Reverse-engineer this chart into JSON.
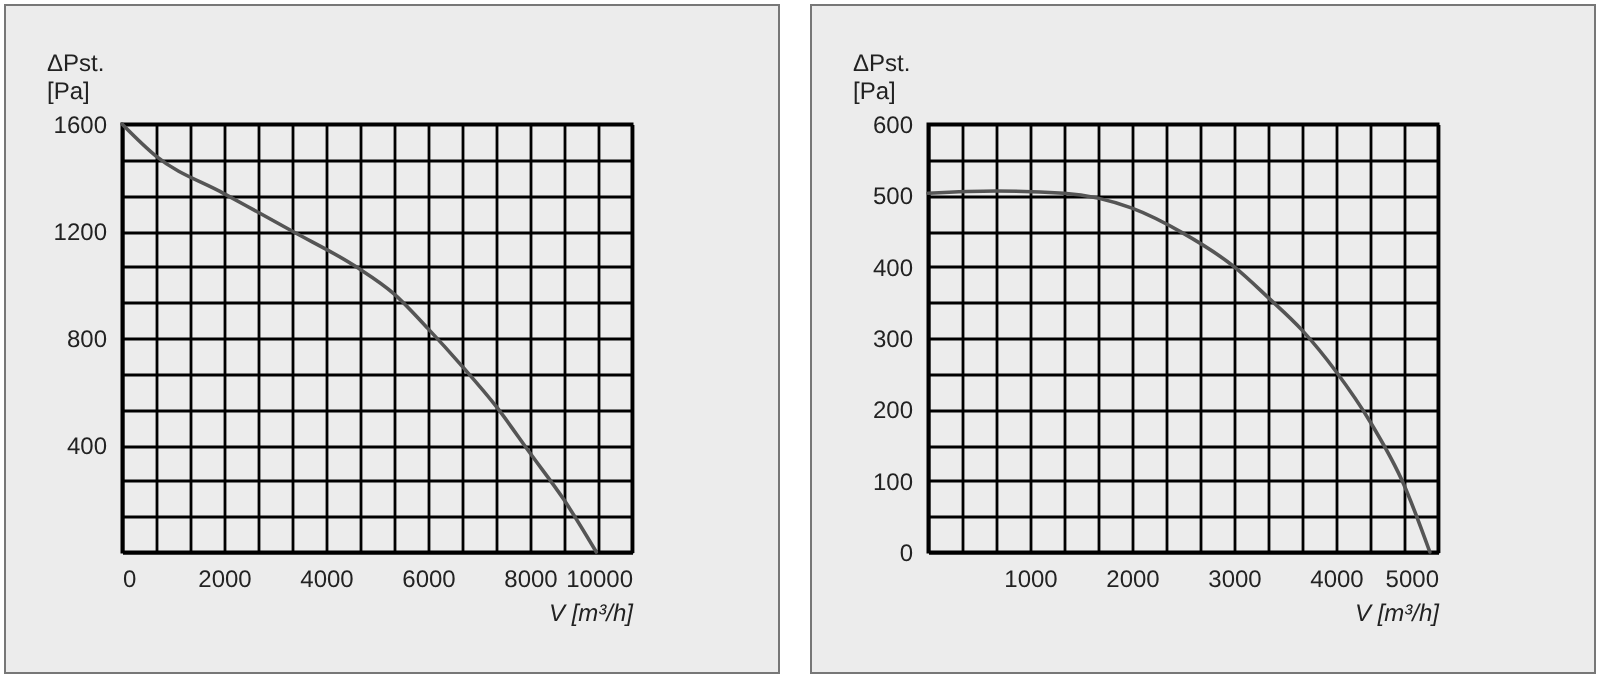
{
  "chart_data": [
    {
      "type": "line",
      "xlabel": "V [m³/h]",
      "ylabel": "ΔPst.\n[Pa]",
      "grid": true,
      "marker": "none",
      "line_style": "solid",
      "xlim": [
        0,
        10000
      ],
      "ylim": [
        0,
        1600
      ],
      "xticks": [
        0,
        {
          "value": 666.7,
          "label": null
        },
        {
          "value": 1333.3,
          "label": null
        },
        2000,
        {
          "value": 2666.7,
          "label": null
        },
        {
          "value": 3333.3,
          "label": null
        },
        4000,
        {
          "value": 4666.7,
          "label": null
        },
        {
          "value": 5333.3,
          "label": null
        },
        6000,
        {
          "value": 6666.7,
          "label": null
        },
        {
          "value": 7333.3,
          "label": null
        },
        8000,
        {
          "value": 8666.7,
          "label": null
        },
        {
          "value": 9333.3,
          "label": null
        },
        10000
      ],
      "yticks": [
        {
          "value": 0,
          "label": null
        },
        {
          "value": 133.3,
          "label": null
        },
        {
          "value": 266.7,
          "label": null
        },
        400,
        {
          "value": 533.3,
          "label": null
        },
        {
          "value": 666.7,
          "label": null
        },
        800,
        {
          "value": 933.3,
          "label": null
        },
        {
          "value": 1066.7,
          "label": null
        },
        1200,
        {
          "value": 1333.3,
          "label": null
        },
        {
          "value": 1466.7,
          "label": null
        },
        1600
      ],
      "x": [
        0,
        667,
        2000,
        3333,
        4600,
        5333,
        6000,
        6667,
        7333,
        8000,
        8667,
        9300
      ],
      "series": [
        {
          "color": "#555555",
          "values": [
            1600,
            1480,
            1340,
            1200,
            1065,
            965,
            835,
            695,
            545,
            370,
            195,
            0
          ]
        }
      ]
    },
    {
      "type": "line",
      "xlabel": "V [m³/h]",
      "ylabel": "ΔPst.\n[Pa]",
      "grid": true,
      "marker": "none",
      "line_style": "solid",
      "xlim": [
        0,
        5000
      ],
      "ylim": [
        0,
        600
      ],
      "xticks": [
        {
          "value": 0,
          "label": null
        },
        {
          "value": 333.3,
          "label": null
        },
        {
          "value": 666.7,
          "label": null
        },
        1000,
        {
          "value": 1333.3,
          "label": null
        },
        {
          "value": 1666.7,
          "label": null
        },
        2000,
        {
          "value": 2333.3,
          "label": null
        },
        {
          "value": 2666.7,
          "label": null
        },
        3000,
        {
          "value": 3333.3,
          "label": null
        },
        {
          "value": 3666.7,
          "label": null
        },
        4000,
        {
          "value": 4333.3,
          "label": null
        },
        {
          "value": 4666.7,
          "label": null
        },
        5000
      ],
      "yticks": [
        0,
        {
          "value": 50,
          "label": null
        },
        100,
        {
          "value": 150,
          "label": null
        },
        200,
        {
          "value": 250,
          "label": null
        },
        300,
        {
          "value": 350,
          "label": null
        },
        400,
        {
          "value": 450,
          "label": null
        },
        500,
        {
          "value": 550,
          "label": null
        },
        600
      ],
      "x": [
        0,
        667,
        1333,
        2000,
        2500,
        3000,
        3333,
        3667,
        4000,
        4333,
        4667,
        4920
      ],
      "series": [
        {
          "color": "#555555",
          "values": [
            503,
            506,
            503,
            482,
            447,
            400,
            357,
            311,
            253,
            183,
            94,
            0
          ]
        }
      ]
    }
  ]
}
